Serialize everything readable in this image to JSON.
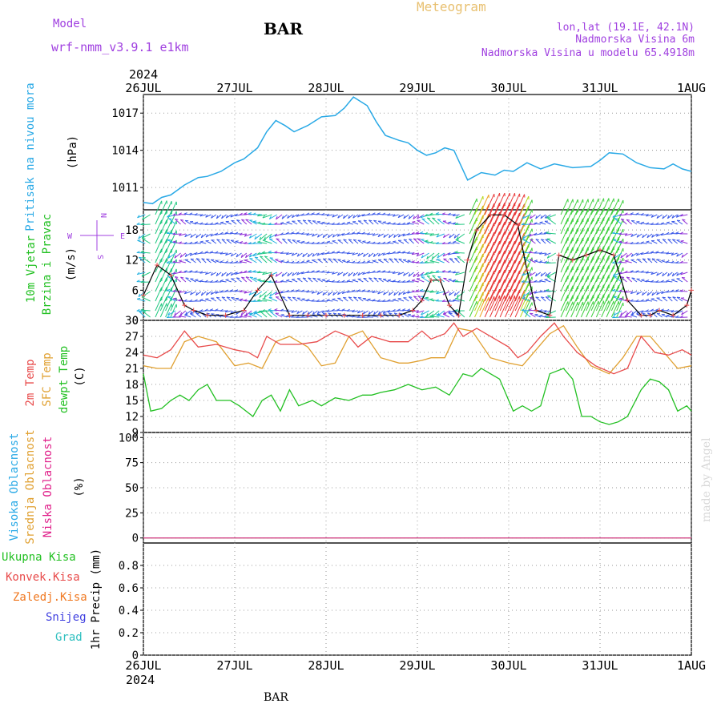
{
  "header": {
    "model_label": "Model",
    "model_name": "wrf-nmm_v3.9.1 e1km",
    "station": "BAR",
    "chart_type": "Meteogram",
    "coords": "lon,lat (19.1E, 42.1N)",
    "elevation": "Nadmorska Visina 6m",
    "model_elevation": "Nadmorska Visina u modelu 65.4918m"
  },
  "footer": {
    "station": "BAR",
    "credit": "made by Angel"
  },
  "time_axis": {
    "year": "2024",
    "tick_labels": [
      "26JUL",
      "27JUL",
      "28JUL",
      "29JUL",
      "30JUL",
      "31JUL",
      "1AUG"
    ],
    "days": 6
  },
  "colors": {
    "pressure": "#29a9e6",
    "wind_label": "#22c022",
    "temp2m": "#e84a4a",
    "sfc_temp": "#e0a030",
    "dewpoint": "#22c022",
    "cloud_high": "#29a9e6",
    "cloud_mid": "#e0a030",
    "cloud_low": "#e0208a",
    "precip_total": "#22c022",
    "precip_conv": "#e84a4a",
    "precip_freezing": "#f07820",
    "precip_snow": "#4040e0",
    "precip_grad": "#30c0c0",
    "header_purple": "#a040e0",
    "wind_speed_line": "#000000",
    "wind_gust_marker": "#e84a4a"
  },
  "panels": {
    "pressure": {
      "labels": [
        "Pritisak na nivou mora"
      ],
      "unit": "(hPa)"
    },
    "wind": {
      "labels": [
        "10m Vjetar",
        "Brzina i Pravac"
      ],
      "unit": "(m/s)",
      "compass": {
        "n": "N",
        "s": "S",
        "w": "W",
        "e": "E"
      }
    },
    "temperature": {
      "labels": [
        "2m Temp",
        "SFC Temp",
        "dewpt Temp"
      ],
      "unit": "(C)"
    },
    "cloud": {
      "labels": [
        "Visoka Oblacnost",
        "Srednja Oblacnost",
        "Niska Oblacnost"
      ],
      "unit": "(%)"
    },
    "precip": {
      "labels": [
        "Ukupna Kisa",
        "Konvek.Kisa",
        "Zaledj.Kisa",
        "Snijeg",
        "Grad"
      ],
      "unit": "1hr Precip (mm)"
    }
  },
  "chart_data": [
    {
      "type": "line",
      "title": "Pritisak na nivou mora",
      "ylabel": "(hPa)",
      "ylim": [
        1009.2,
        1018.5
      ],
      "yticks": [
        1011,
        1014,
        1017
      ],
      "x_unit": "days since 26JUL",
      "grid": true,
      "series": [
        {
          "name": "Pritisak na nivou mora",
          "x": [
            0,
            0.1,
            0.2,
            0.3,
            0.45,
            0.6,
            0.7,
            0.85,
            1.0,
            1.1,
            1.25,
            1.35,
            1.45,
            1.55,
            1.65,
            1.8,
            1.95,
            2.1,
            2.2,
            2.3,
            2.45,
            2.55,
            2.65,
            2.8,
            2.9,
            3.0,
            3.1,
            3.2,
            3.3,
            3.4,
            3.55,
            3.7,
            3.85,
            3.95,
            4.05,
            4.2,
            4.35,
            4.5,
            4.7,
            4.9,
            5.0,
            5.1,
            5.25,
            5.4,
            5.55,
            5.7,
            5.8,
            5.9,
            6.0
          ],
          "values": [
            1009.8,
            1009.7,
            1010.2,
            1010.4,
            1011.2,
            1011.8,
            1011.9,
            1012.3,
            1013.0,
            1013.3,
            1014.2,
            1015.5,
            1016.4,
            1016.0,
            1015.5,
            1016.0,
            1016.7,
            1016.8,
            1017.4,
            1018.3,
            1017.6,
            1016.3,
            1015.2,
            1014.8,
            1014.6,
            1014.0,
            1013.6,
            1013.8,
            1014.2,
            1014.0,
            1011.6,
            1012.2,
            1012.0,
            1012.4,
            1012.3,
            1013.0,
            1012.5,
            1012.9,
            1012.6,
            1012.7,
            1013.2,
            1013.8,
            1013.7,
            1013.0,
            1012.6,
            1012.5,
            1012.9,
            1012.5,
            1012.3
          ]
        }
      ]
    },
    {
      "type": "line",
      "title": "10m Vjetar Brzina i Pravac",
      "ylabel": "(m/s)",
      "ylim": [
        0,
        22
      ],
      "yticks": [
        0,
        6,
        12,
        18
      ],
      "x_unit": "days since 26JUL",
      "grid": true,
      "series": [
        {
          "name": "wind speed",
          "x": [
            0,
            0.15,
            0.3,
            0.45,
            0.55,
            0.7,
            0.9,
            1.1,
            1.25,
            1.4,
            1.6,
            1.8,
            2.0,
            2.2,
            2.4,
            2.6,
            2.8,
            2.95,
            3.05,
            3.15,
            3.25,
            3.35,
            3.45,
            3.55,
            3.65,
            3.8,
            3.95,
            4.1,
            4.2,
            4.3,
            4.45,
            4.55,
            4.7,
            4.85,
            5.0,
            5.15,
            5.3,
            5.45,
            5.55,
            5.65,
            5.8,
            5.95,
            6.0
          ],
          "values": [
            5,
            11,
            9,
            3,
            2,
            1,
            1,
            2,
            6,
            9,
            1,
            1,
            1,
            1,
            1,
            1,
            1,
            2,
            4,
            8,
            8,
            3,
            1,
            12,
            18,
            21,
            21,
            19,
            10,
            2,
            1,
            13,
            12,
            13,
            14,
            13,
            4,
            1,
            1,
            2,
            1,
            3,
            6
          ]
        }
      ]
    },
    {
      "type": "line",
      "title": "2m Temp / SFC Temp / dewpt Temp",
      "ylabel": "(C)",
      "ylim": [
        9,
        30
      ],
      "yticks": [
        9,
        12,
        15,
        18,
        21,
        24,
        27,
        30
      ],
      "x_unit": "days since 26JUL",
      "grid": true,
      "series": [
        {
          "name": "2m Temp",
          "x": [
            0,
            0.15,
            0.3,
            0.45,
            0.6,
            0.8,
            1.0,
            1.15,
            1.25,
            1.35,
            1.5,
            1.7,
            1.9,
            2.1,
            2.25,
            2.35,
            2.5,
            2.7,
            2.9,
            3.05,
            3.15,
            3.3,
            3.4,
            3.5,
            3.65,
            3.85,
            4.0,
            4.1,
            4.2,
            4.35,
            4.5,
            4.6,
            4.75,
            4.95,
            5.15,
            5.3,
            5.45,
            5.6,
            5.75,
            5.9,
            6.0
          ],
          "values": [
            23.5,
            23,
            24.5,
            28,
            25,
            25.5,
            24.5,
            24,
            23,
            27,
            25.5,
            25.5,
            26,
            28,
            27,
            25,
            27,
            26,
            26,
            28,
            26.5,
            27.5,
            29.5,
            27,
            28.5,
            26.5,
            25,
            23,
            24,
            27,
            29.5,
            27,
            24,
            21.5,
            20,
            21,
            27,
            24,
            23.5,
            24.5,
            23.5
          ]
        },
        {
          "name": "SFC Temp",
          "x": [
            0,
            0.15,
            0.3,
            0.45,
            0.6,
            0.8,
            1.0,
            1.15,
            1.3,
            1.45,
            1.6,
            1.8,
            1.95,
            2.1,
            2.25,
            2.4,
            2.6,
            2.8,
            2.9,
            3.05,
            3.15,
            3.3,
            3.45,
            3.6,
            3.8,
            4.0,
            4.15,
            4.3,
            4.45,
            4.6,
            4.75,
            4.9,
            5.1,
            5.25,
            5.4,
            5.55,
            5.7,
            5.85,
            6.0
          ],
          "values": [
            21.5,
            21,
            21,
            26,
            27,
            26,
            21.5,
            22,
            21,
            26,
            27,
            25,
            21.5,
            22,
            27,
            28,
            23,
            22,
            22,
            22.5,
            23,
            23,
            28.5,
            28,
            23,
            22,
            21.5,
            24.5,
            27.5,
            29,
            25,
            21.5,
            20,
            23,
            27,
            27,
            24,
            21,
            21.5
          ]
        },
        {
          "name": "dewpt Temp",
          "x": [
            0,
            0.08,
            0.2,
            0.3,
            0.4,
            0.5,
            0.6,
            0.7,
            0.8,
            0.95,
            1.05,
            1.2,
            1.3,
            1.4,
            1.5,
            1.6,
            1.7,
            1.85,
            1.95,
            2.1,
            2.25,
            2.4,
            2.5,
            2.6,
            2.75,
            2.9,
            3.05,
            3.2,
            3.35,
            3.5,
            3.6,
            3.7,
            3.8,
            3.9,
            4.0,
            4.05,
            4.15,
            4.25,
            4.35,
            4.45,
            4.6,
            4.7,
            4.8,
            4.9,
            5.0,
            5.1,
            5.2,
            5.3,
            5.45,
            5.55,
            5.65,
            5.75,
            5.85,
            5.95,
            6.0
          ],
          "values": [
            20,
            13,
            13.5,
            15,
            16,
            15,
            17,
            18,
            15,
            15,
            14,
            12,
            15,
            16,
            13,
            17,
            14,
            15,
            14,
            15.5,
            15,
            16,
            16,
            16.5,
            17,
            18,
            17,
            17.5,
            16,
            20,
            19.5,
            21,
            20,
            19,
            15,
            13,
            14,
            13,
            14,
            20,
            21,
            19,
            12,
            12,
            11,
            10.5,
            11,
            12,
            17,
            19,
            18.5,
            17,
            13,
            14,
            13
          ]
        }
      ]
    },
    {
      "type": "line",
      "title": "Visoka / Srednja / Niska Oblacnost",
      "ylabel": "(%)",
      "ylim": [
        -5,
        105
      ],
      "yticks": [
        0,
        25,
        50,
        75,
        100
      ],
      "x_unit": "days since 26JUL",
      "grid": true,
      "series": [
        {
          "name": "Visoka Oblacnost",
          "x": [
            0,
            6
          ],
          "values": [
            0,
            0
          ]
        },
        {
          "name": "Srednja Oblacnost",
          "x": [
            0,
            6
          ],
          "values": [
            0,
            0
          ]
        },
        {
          "name": "Niska Oblacnost",
          "x": [
            0,
            6
          ],
          "values": [
            0,
            0
          ]
        }
      ]
    },
    {
      "type": "bar",
      "title": "1hr Precip",
      "ylabel": "1hr Precip (mm)",
      "ylim": [
        0,
        1.0
      ],
      "yticks": [
        0,
        0.2,
        0.4,
        0.6,
        0.8
      ],
      "x_unit": "days since 26JUL",
      "grid": true,
      "series": [
        {
          "name": "Ukupna Kisa",
          "x": [],
          "values": []
        },
        {
          "name": "Konvek.Kisa",
          "x": [],
          "values": []
        },
        {
          "name": "Zaledj.Kisa",
          "x": [],
          "values": []
        },
        {
          "name": "Snijeg",
          "x": [],
          "values": []
        },
        {
          "name": "Grad",
          "x": [],
          "values": []
        }
      ]
    }
  ]
}
